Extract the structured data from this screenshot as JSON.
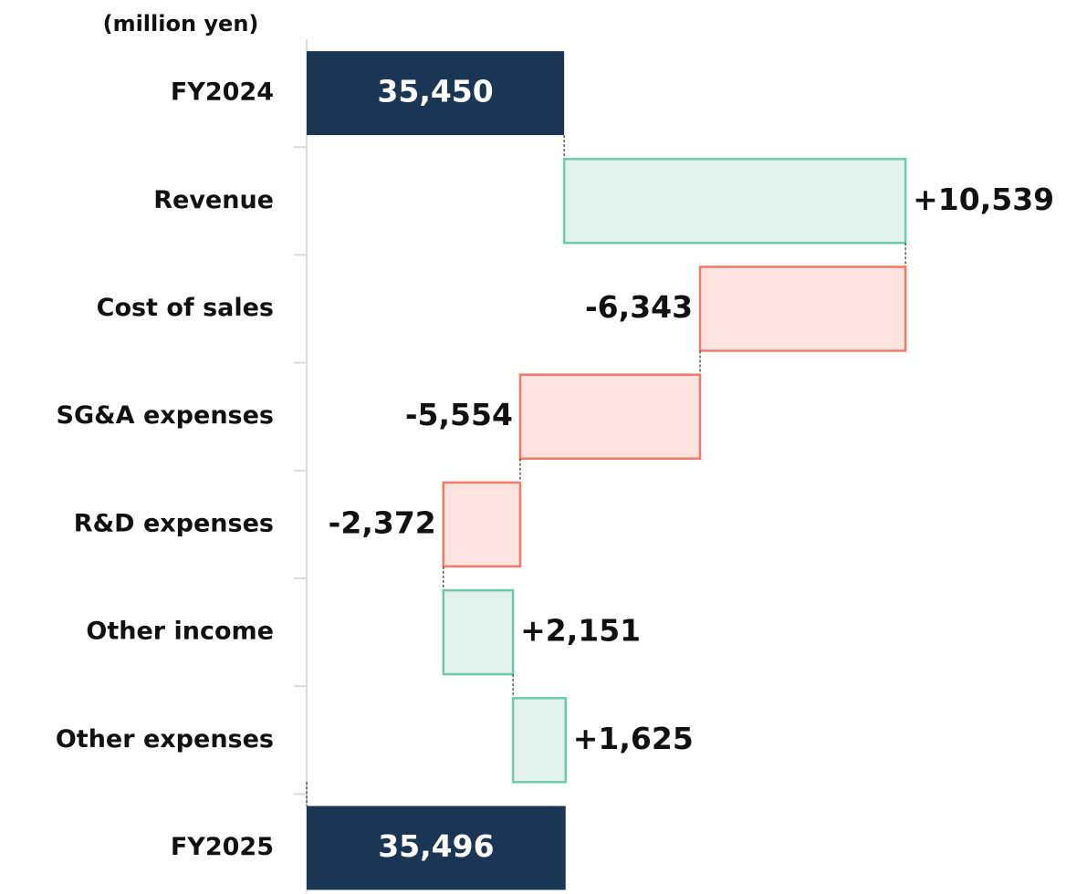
{
  "chart_data": {
    "type": "waterfall",
    "title": "(million yen)",
    "categories": [
      "FY2024",
      "Revenue",
      "Cost of sales",
      "SG&A expenses",
      "R&D expenses",
      "Other income",
      "Other expenses",
      "FY2025"
    ],
    "values": [
      35450,
      10539,
      -6343,
      -5554,
      -2372,
      2151,
      1625,
      35496
    ],
    "value_labels": [
      "35,450",
      "+10,539",
      "-6,343",
      "-5,554",
      "-2,372",
      "+2,151",
      "+1,625",
      "35,496"
    ],
    "measure": [
      "absolute",
      "relative",
      "relative",
      "relative",
      "relative",
      "relative",
      "relative",
      "absolute"
    ],
    "colors": {
      "total": "#1b3655",
      "increase": "#e2f1ec",
      "increase_border": "#6cc9ad",
      "decrease": "#fde3df",
      "decrease_border": "#f07a66"
    },
    "xlim": [
      27500,
      50000
    ]
  }
}
